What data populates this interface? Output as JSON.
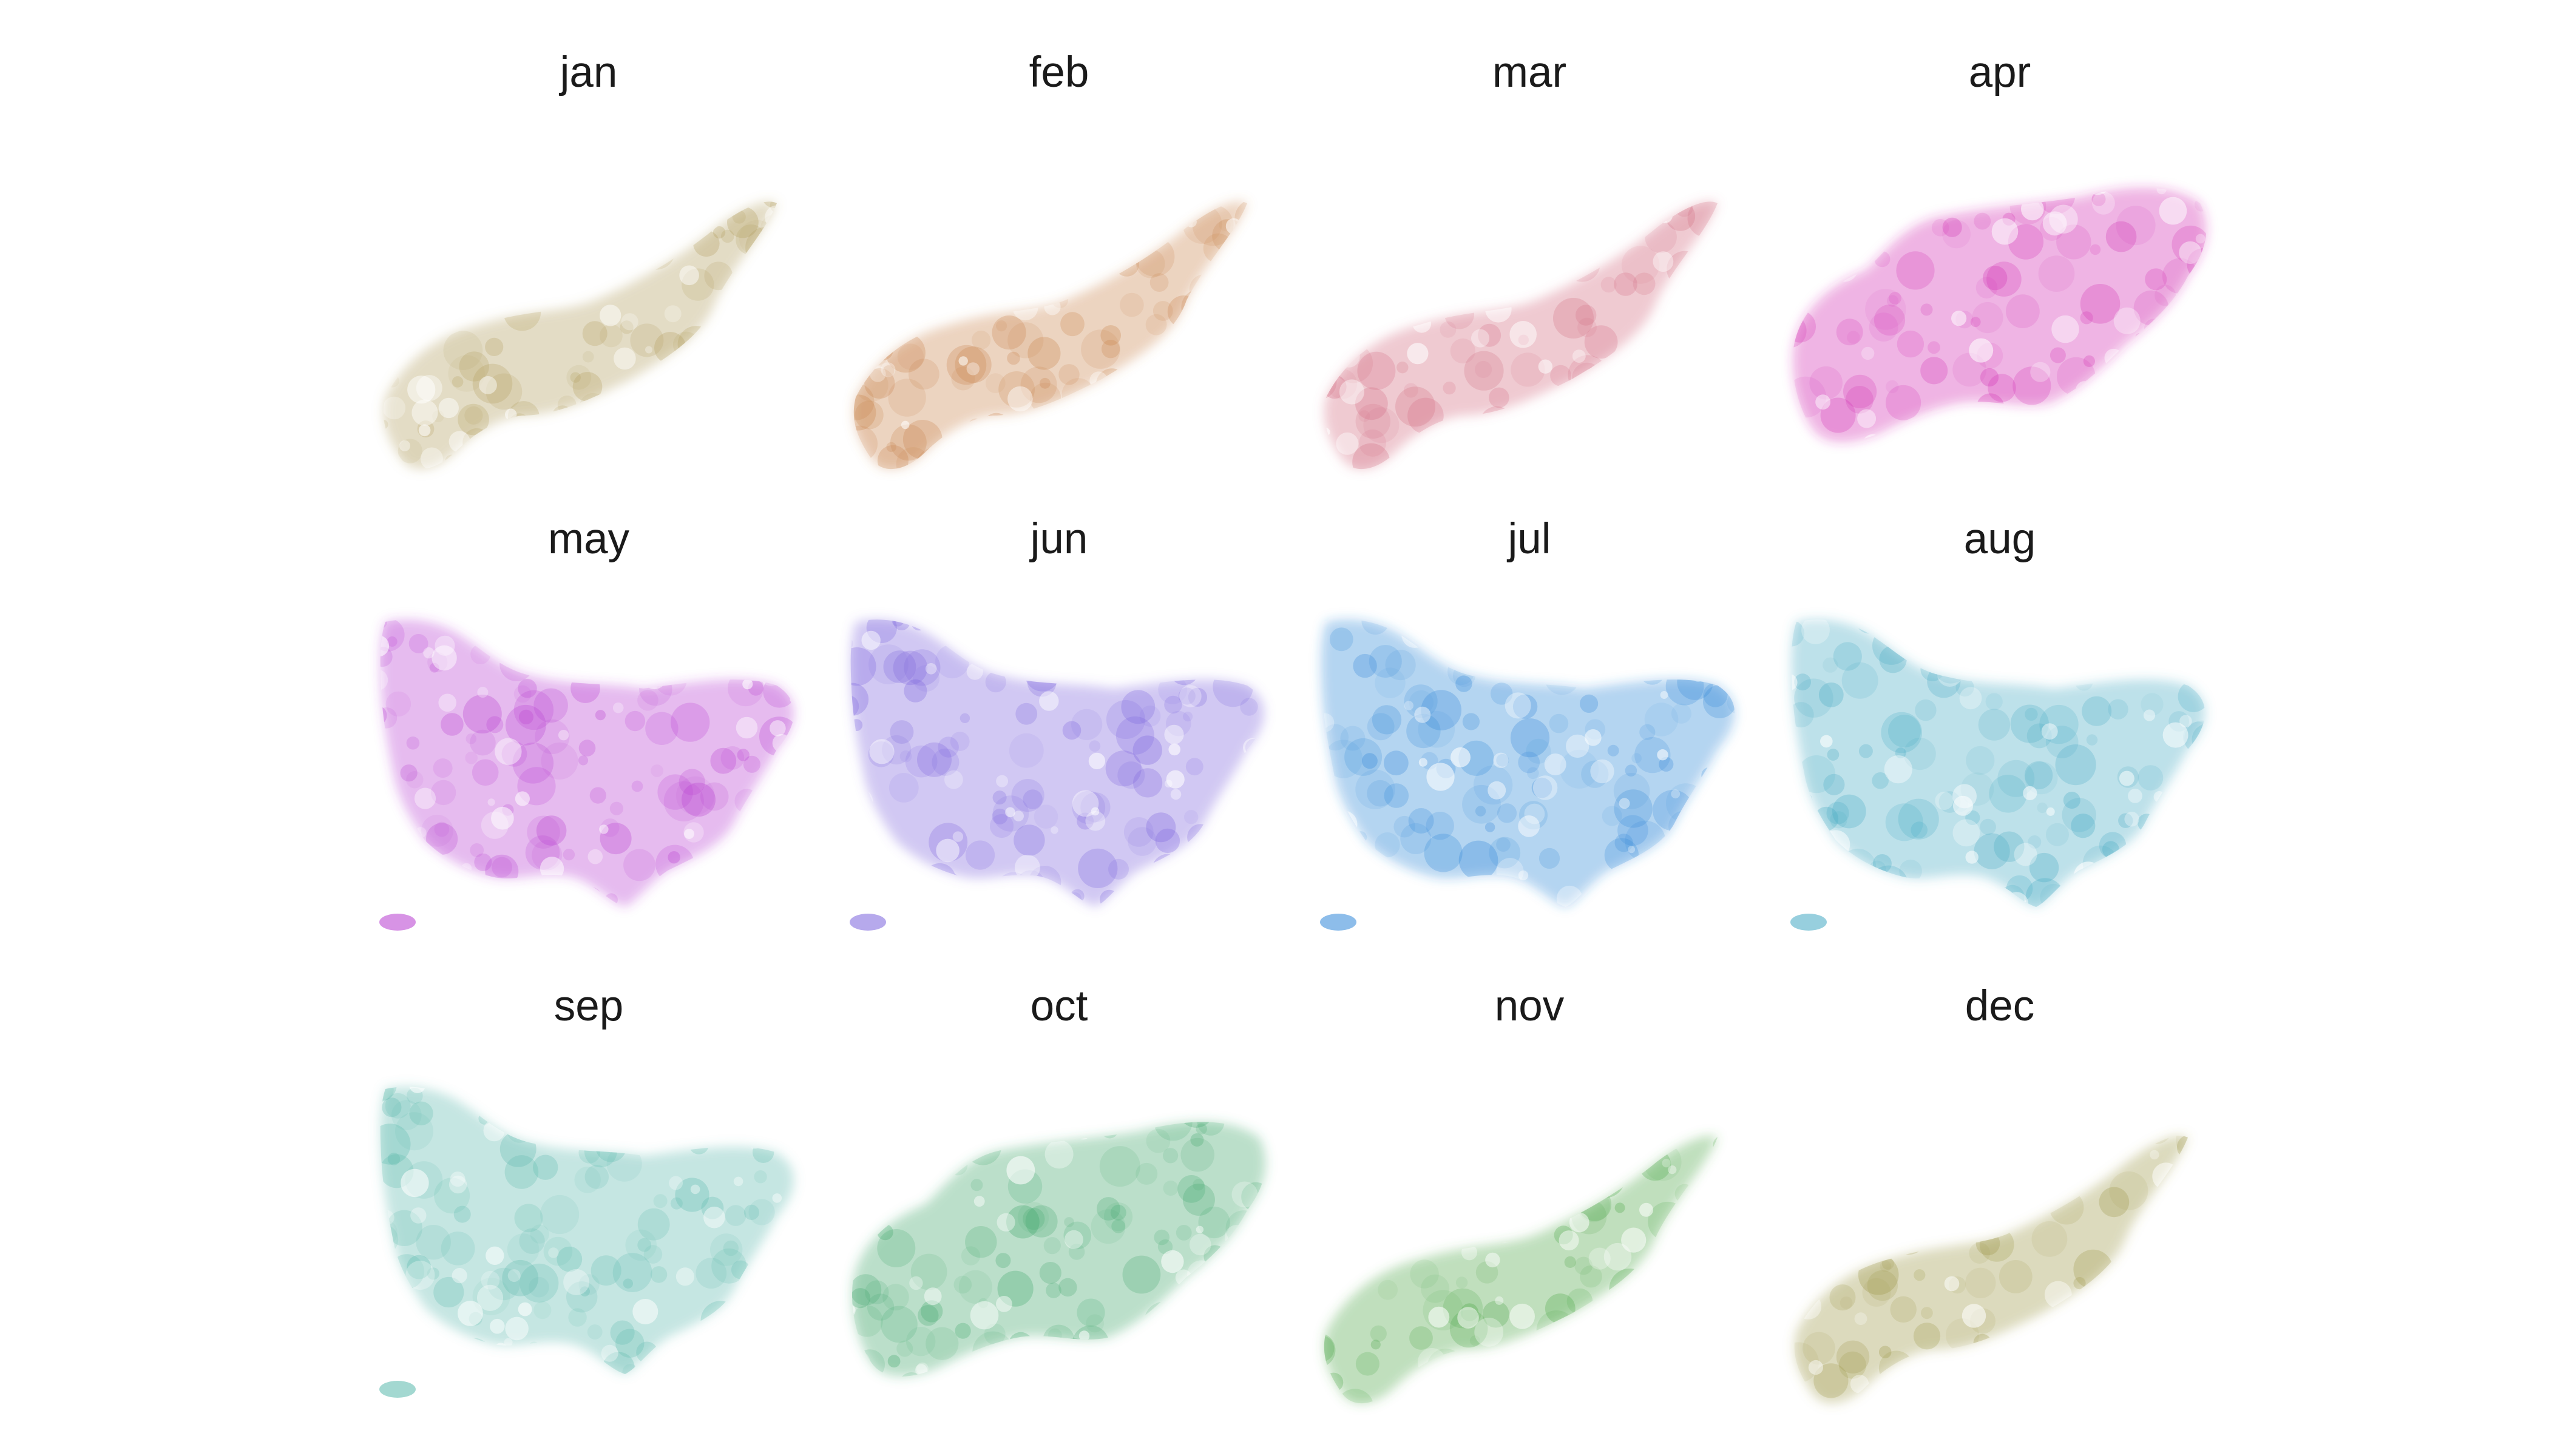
{
  "figure": {
    "panels": [
      {
        "title": "jan",
        "color": "#b09a58",
        "season_shape": "compact"
      },
      {
        "title": "feb",
        "color": "#c8824a",
        "season_shape": "compact"
      },
      {
        "title": "mar",
        "color": "#d0667c",
        "season_shape": "compact"
      },
      {
        "title": "apr",
        "color": "#d22fb2",
        "season_shape": "wide"
      },
      {
        "title": "may",
        "color": "#b73ad0",
        "season_shape": "full"
      },
      {
        "title": "jun",
        "color": "#7a62dd",
        "season_shape": "full"
      },
      {
        "title": "jul",
        "color": "#2f86d8",
        "season_shape": "full"
      },
      {
        "title": "aug",
        "color": "#42a8c2",
        "season_shape": "full"
      },
      {
        "title": "sep",
        "color": "#58b8ab",
        "season_shape": "full"
      },
      {
        "title": "oct",
        "color": "#3aa468",
        "season_shape": "wide"
      },
      {
        "title": "nov",
        "color": "#47a443",
        "season_shape": "compact"
      },
      {
        "title": "dec",
        "color": "#9a9544",
        "season_shape": "compact"
      }
    ]
  }
}
